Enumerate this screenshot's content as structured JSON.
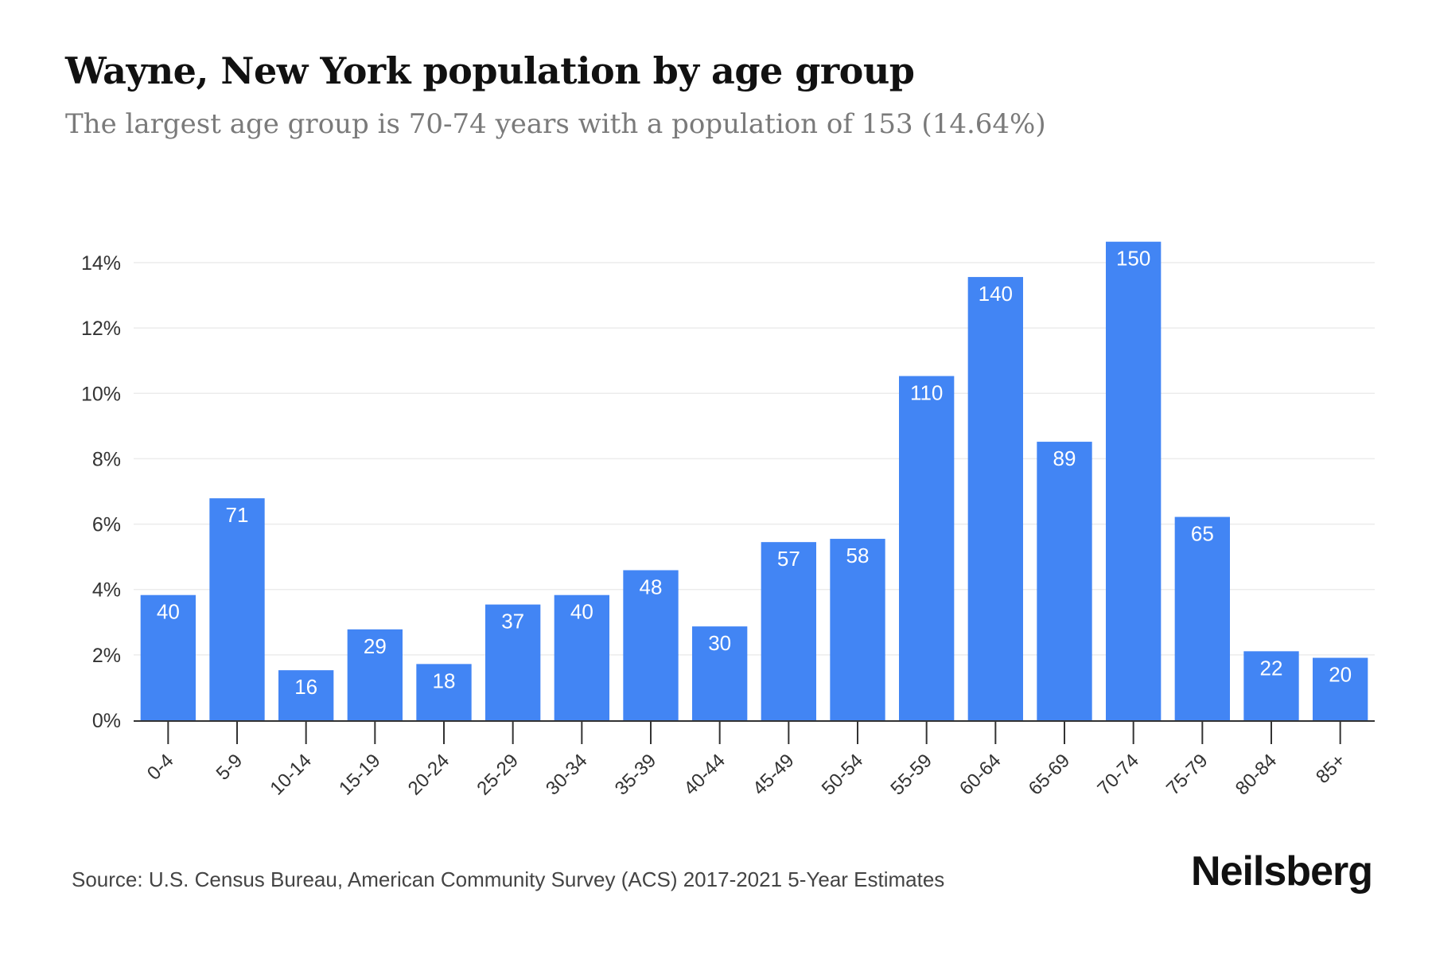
{
  "header": {
    "title": "Wayne, New York population by age group",
    "subtitle": "The largest age group is 70-74 years with a population of 153 (14.64%)"
  },
  "footer": {
    "source": "Source: U.S. Census Bureau, American Community Survey (ACS) 2017-2021 5-Year Estimates",
    "brand": "Neilsberg"
  },
  "colors": {
    "bar": "#4285f4",
    "grid": "#ececec",
    "axis": "#333333"
  },
  "chart_data": {
    "type": "bar",
    "title": "Wayne, New York population by age group",
    "categories": [
      "0-4",
      "5-9",
      "10-14",
      "15-19",
      "20-24",
      "25-29",
      "30-34",
      "35-39",
      "40-44",
      "45-49",
      "50-54",
      "55-59",
      "60-64",
      "65-69",
      "70-74",
      "75-79",
      "80-84",
      "85+"
    ],
    "values": [
      3.83,
      6.79,
      1.53,
      2.78,
      1.72,
      3.54,
      3.83,
      4.59,
      2.87,
      5.45,
      5.55,
      10.53,
      13.56,
      8.52,
      14.64,
      6.22,
      2.11,
      1.91
    ],
    "data_labels": [
      "40",
      "71",
      "16",
      "29",
      "18",
      "37",
      "40",
      "48",
      "30",
      "57",
      "58",
      "110",
      "140",
      "89",
      "150",
      "65",
      "22",
      "20"
    ],
    "ylim": [
      0,
      14
    ],
    "yticks": [
      0,
      2,
      4,
      6,
      8,
      10,
      12,
      14
    ],
    "ytick_labels": [
      "0%",
      "2%",
      "4%",
      "6%",
      "8%",
      "10%",
      "12%",
      "14%"
    ],
    "xlabel": "",
    "ylabel": "",
    "grid": true,
    "legend": "none"
  }
}
